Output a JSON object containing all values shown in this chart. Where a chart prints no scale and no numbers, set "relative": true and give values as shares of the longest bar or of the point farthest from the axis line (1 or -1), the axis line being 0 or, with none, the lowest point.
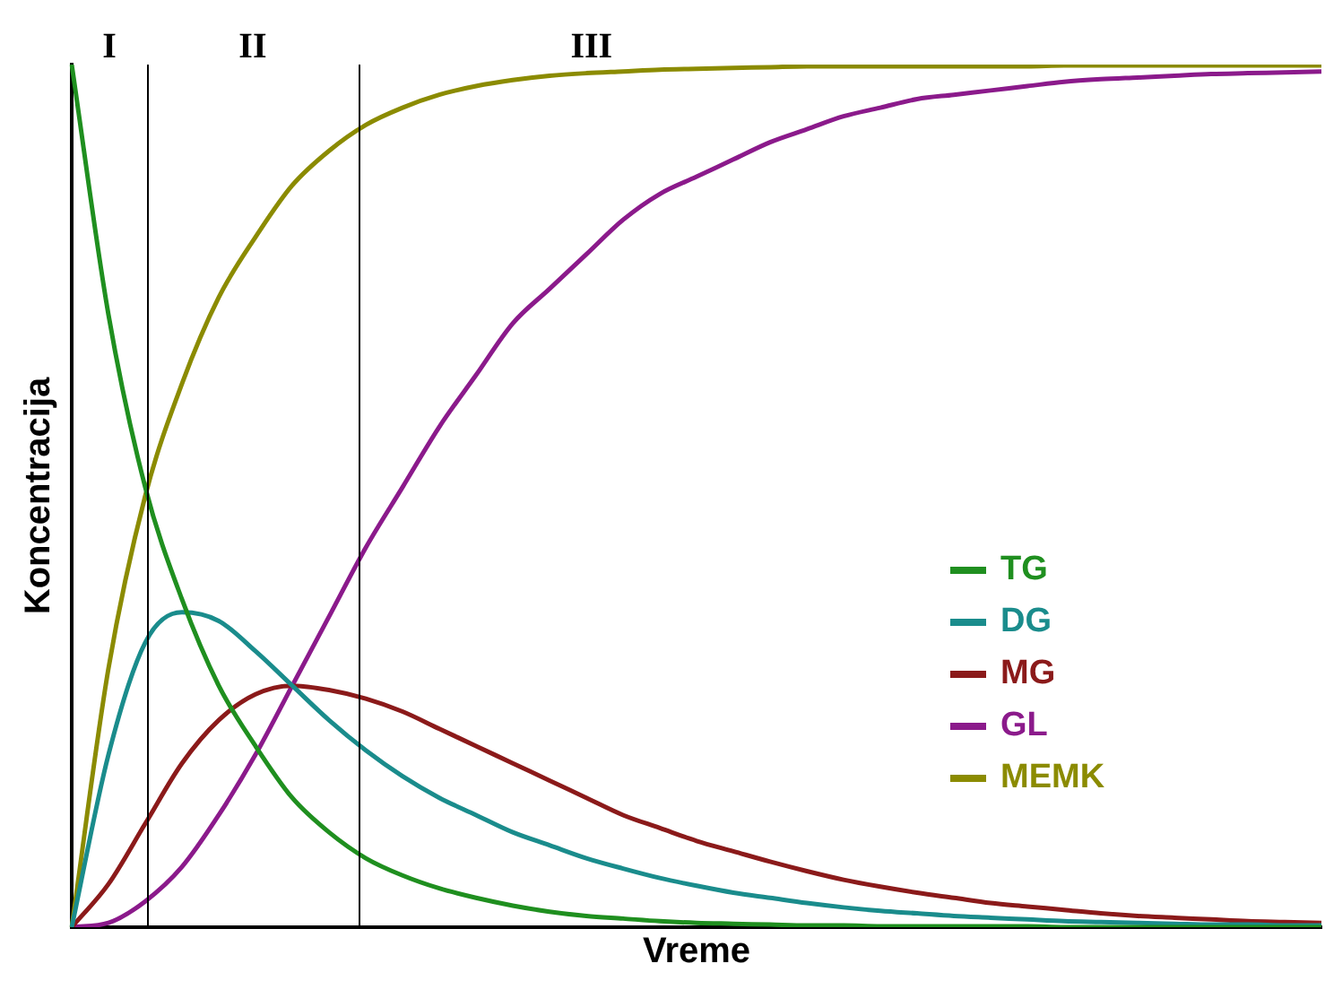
{
  "chart_data": {
    "type": "line",
    "relative": true,
    "xlabel": "Vreme",
    "ylabel": "Koncentracija",
    "categories": [
      null,
      null,
      null,
      null,
      null,
      null,
      null,
      null,
      null,
      null,
      null,
      null,
      null,
      null,
      null,
      null,
      null,
      null,
      null,
      null,
      null,
      null,
      null,
      null,
      null,
      null,
      null,
      null,
      null,
      null,
      null,
      null,
      null,
      null,
      null
    ],
    "series": [
      {
        "name": "TG",
        "color": "#1f8f1f",
        "values": [
          1.0,
          0.71,
          0.51,
          0.38,
          0.28,
          0.21,
          0.15,
          0.11,
          0.08,
          0.06,
          0.045,
          0.034,
          0.025,
          0.018,
          0.013,
          0.01,
          0.007,
          0.005,
          0.004,
          0.003,
          0.002,
          0.002,
          0.001,
          0.001,
          0.001,
          0.001,
          0.001,
          0,
          0,
          0,
          0,
          0,
          0,
          0,
          0
        ]
      },
      {
        "name": "DG",
        "color": "#1a8c8c",
        "values": [
          0,
          0.2,
          0.33,
          0.365,
          0.355,
          0.32,
          0.28,
          0.24,
          0.205,
          0.175,
          0.15,
          0.13,
          0.11,
          0.095,
          0.08,
          0.068,
          0.057,
          0.048,
          0.04,
          0.034,
          0.028,
          0.023,
          0.019,
          0.016,
          0.013,
          0.011,
          0.009,
          0.007,
          0.006,
          0.005,
          0.004,
          0.003,
          0.003,
          0.002,
          0.002
        ]
      },
      {
        "name": "MG",
        "color": "#8b1a1a",
        "values": [
          0,
          0.05,
          0.12,
          0.19,
          0.24,
          0.27,
          0.28,
          0.275,
          0.265,
          0.25,
          0.23,
          0.21,
          0.19,
          0.17,
          0.15,
          0.13,
          0.115,
          0.1,
          0.088,
          0.076,
          0.065,
          0.055,
          0.047,
          0.04,
          0.034,
          0.028,
          0.024,
          0.02,
          0.016,
          0.013,
          0.011,
          0.009,
          0.007,
          0.006,
          0.005
        ]
      },
      {
        "name": "GL",
        "color": "#8b1a8b",
        "values": [
          0,
          0.005,
          0.03,
          0.07,
          0.13,
          0.2,
          0.28,
          0.36,
          0.44,
          0.51,
          0.58,
          0.64,
          0.7,
          0.74,
          0.78,
          0.82,
          0.85,
          0.87,
          0.89,
          0.91,
          0.925,
          0.94,
          0.95,
          0.96,
          0.965,
          0.97,
          0.975,
          0.98,
          0.983,
          0.985,
          0.987,
          0.989,
          0.99,
          0.991,
          0.992
        ]
      },
      {
        "name": "MEMK",
        "color": "#8b8b00",
        "values": [
          0,
          0.3,
          0.5,
          0.63,
          0.73,
          0.8,
          0.86,
          0.9,
          0.93,
          0.95,
          0.965,
          0.975,
          0.982,
          0.987,
          0.99,
          0.992,
          0.994,
          0.995,
          0.996,
          0.997,
          0.998,
          0.998,
          0.998,
          0.998,
          0.998,
          0.998,
          0.998,
          0.999,
          0.999,
          0.999,
          0.999,
          0.999,
          0.999,
          0.999,
          0.999
        ]
      }
    ],
    "annotations": [
      "I",
      "II",
      "III"
    ],
    "legend": "right",
    "marker": "none",
    "line_style": "solid"
  }
}
